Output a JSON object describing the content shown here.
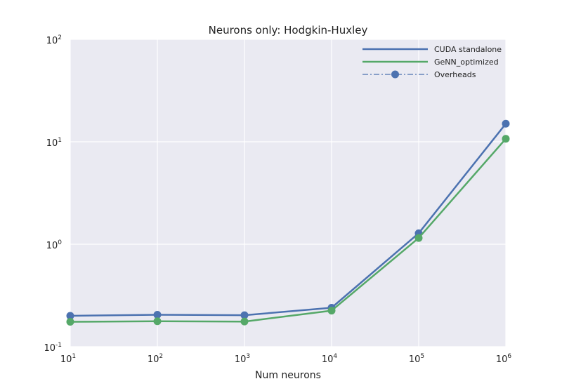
{
  "chart_data": {
    "type": "line",
    "title": "Neurons only: Hodgkin-Huxley",
    "xlabel": "Num neurons",
    "ylabel": "",
    "xscale": "log",
    "yscale": "log",
    "xlim": [
      10,
      1000000
    ],
    "ylim": [
      0.1,
      100
    ],
    "grid": true,
    "legend_position": "top-right",
    "x_ticks": [
      {
        "base": "10",
        "exp": "1"
      },
      {
        "base": "10",
        "exp": "2"
      },
      {
        "base": "10",
        "exp": "3"
      },
      {
        "base": "10",
        "exp": "4"
      },
      {
        "base": "10",
        "exp": "5"
      },
      {
        "base": "10",
        "exp": "6"
      }
    ],
    "y_ticks": [
      {
        "base": "10",
        "exp": "-1"
      },
      {
        "base": "10",
        "exp": "0"
      },
      {
        "base": "10",
        "exp": "1"
      },
      {
        "base": "10",
        "exp": "2"
      }
    ],
    "x": [
      10,
      100,
      1000,
      10000,
      100000,
      1000000
    ],
    "series": [
      {
        "name": "CUDA standalone",
        "color": "#4c72b0",
        "style": "solid",
        "values": [
          0.2,
          0.205,
          0.203,
          0.24,
          1.28,
          15.0
        ]
      },
      {
        "name": "GeNN_optimized",
        "color": "#55a868",
        "style": "solid",
        "values": [
          0.175,
          0.177,
          0.176,
          0.225,
          1.15,
          10.7
        ]
      }
    ],
    "legend_entries": [
      {
        "name": "CUDA standalone",
        "color": "#4c72b0",
        "style": "solid",
        "marker": false
      },
      {
        "name": "GeNN_optimized",
        "color": "#55a868",
        "style": "solid",
        "marker": false
      },
      {
        "name": "Overheads",
        "color": "#4c72b0",
        "style": "dashdot",
        "marker": true
      }
    ],
    "colors": {
      "plot_background": "#eaeaf2",
      "grid": "#ffffff"
    }
  }
}
